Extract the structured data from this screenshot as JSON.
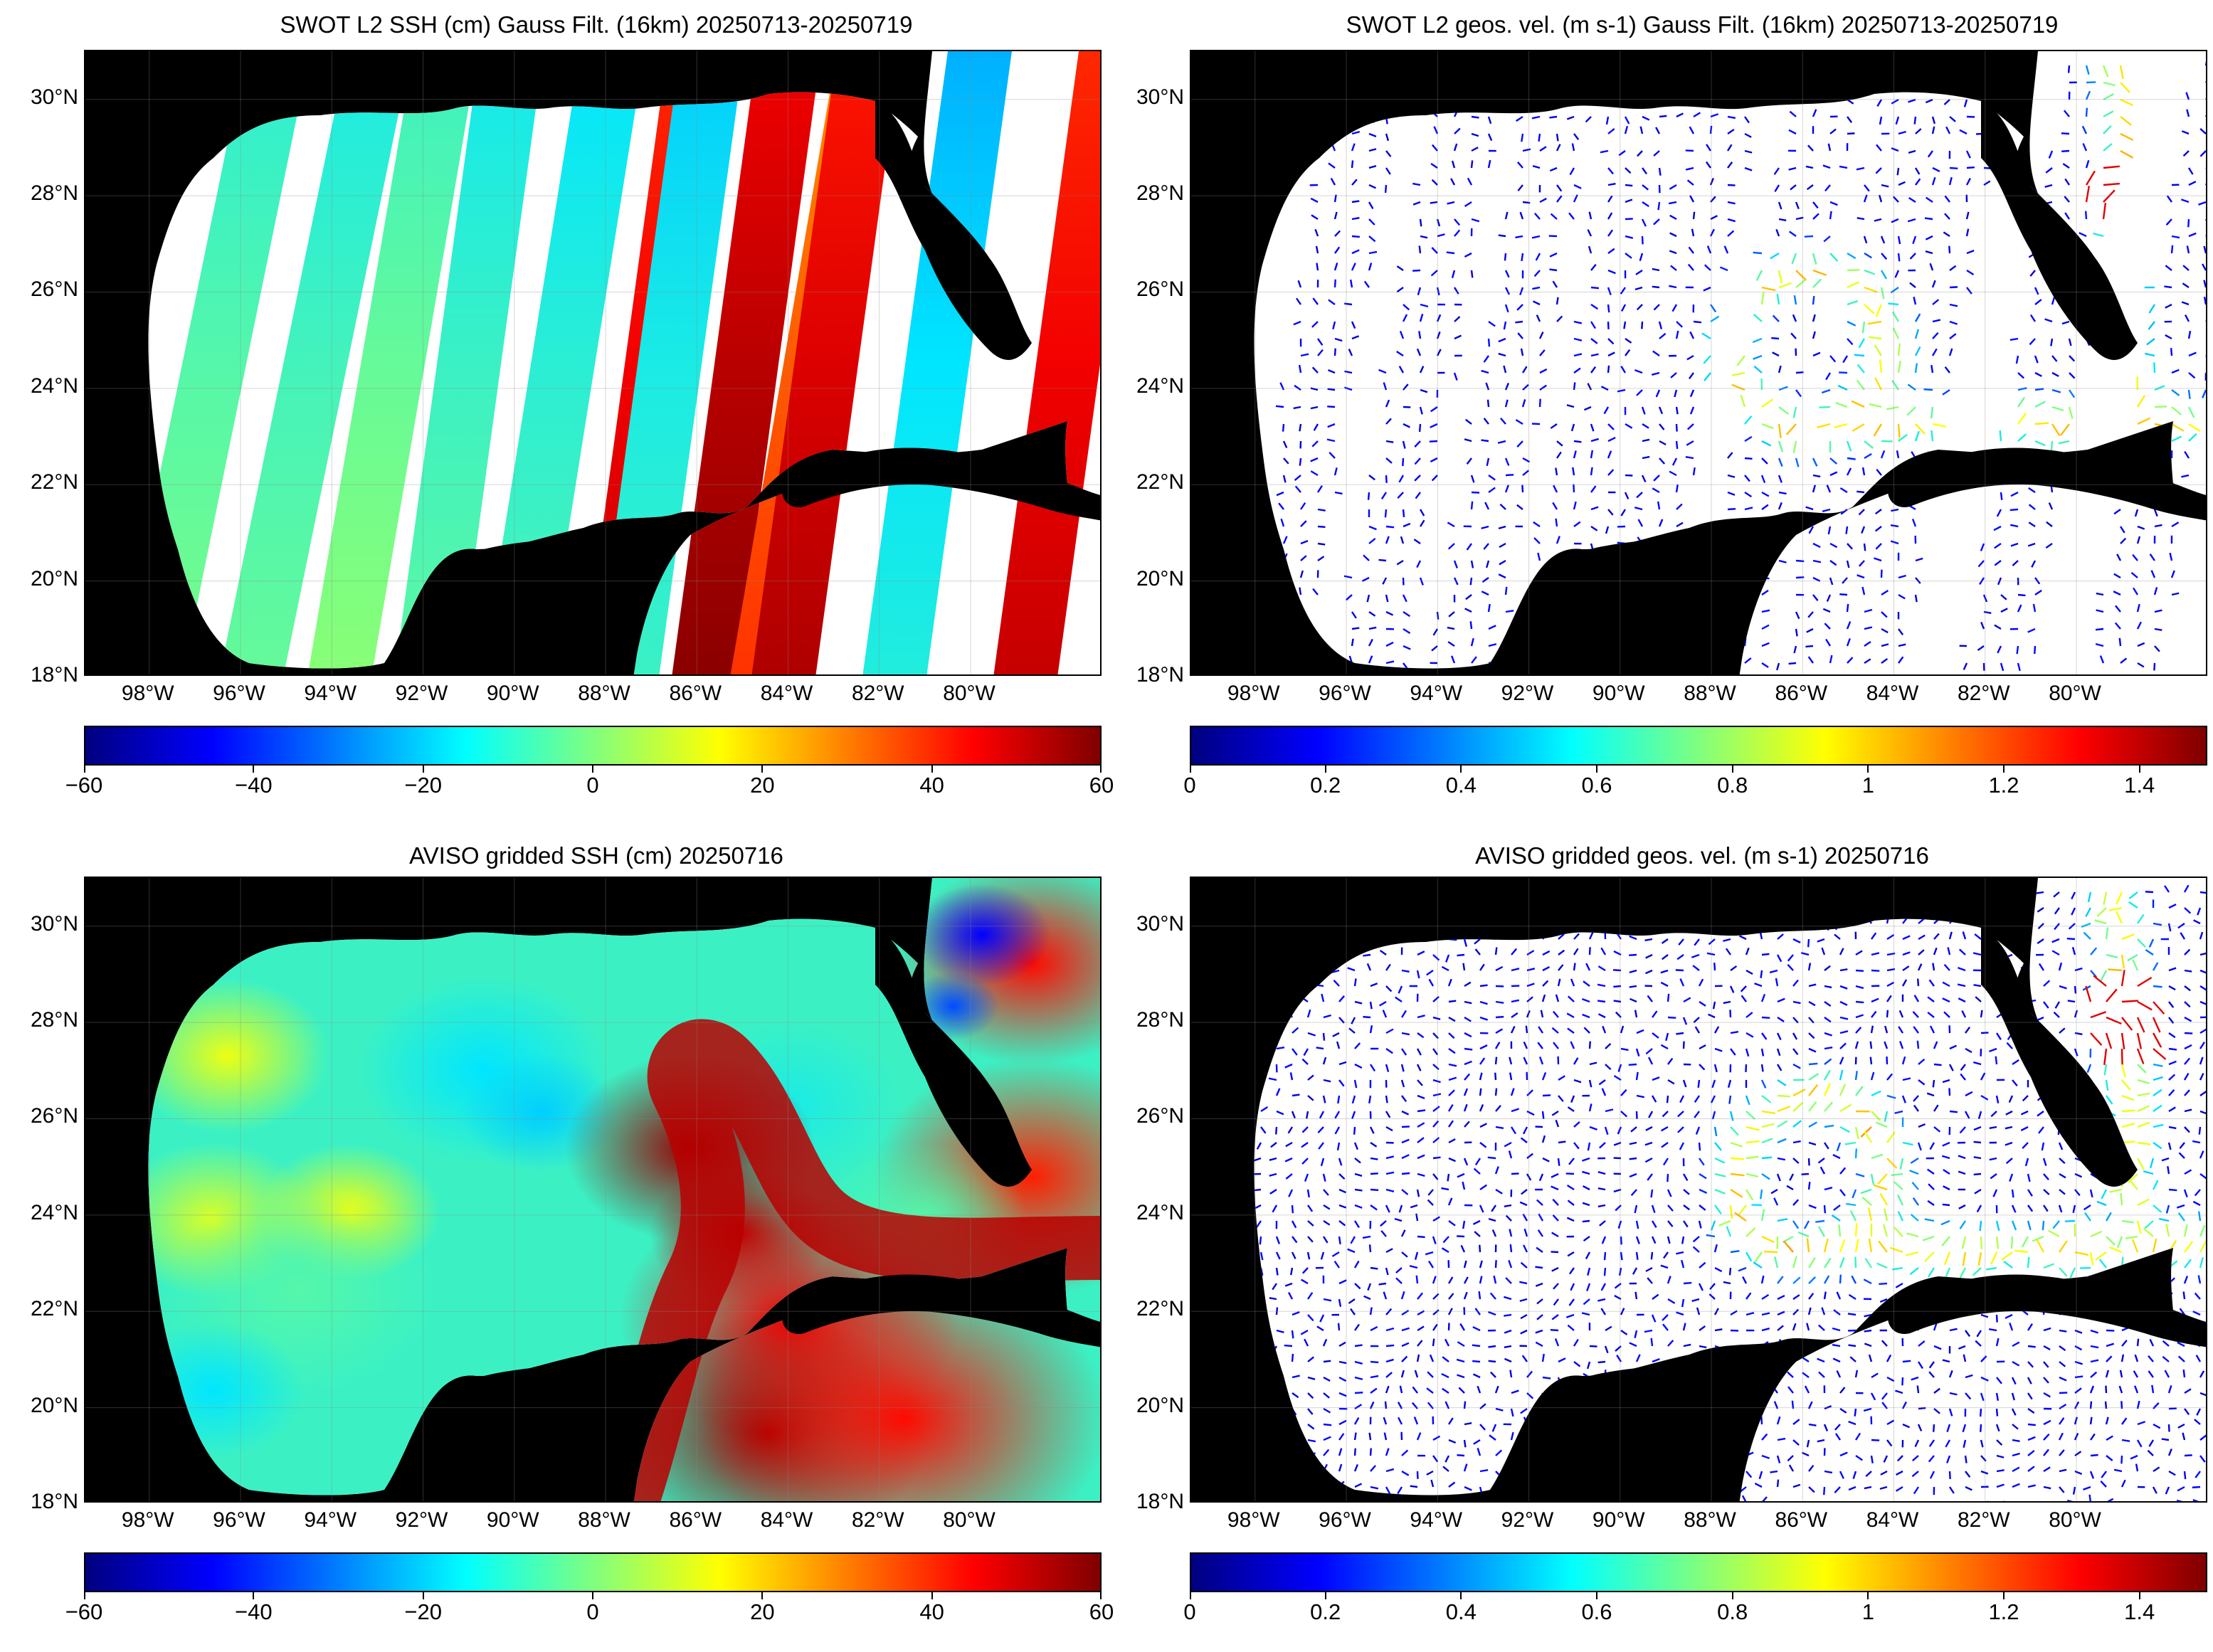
{
  "colors": {
    "land": "#000000",
    "ocean_nodata": "#ffffff",
    "jet": [
      "#00007f",
      "#0000ff",
      "#007fff",
      "#00ffff",
      "#7fff7f",
      "#ffff00",
      "#ff7f00",
      "#ff0000",
      "#7f0000"
    ]
  },
  "chart_data": [
    {
      "id": "swot-ssh",
      "type": "heatmap",
      "title": "SWOT L2 SSH (cm) Gauss Filt. (16km) 20250713-20250719",
      "xlim": [
        -99.4,
        -77.1
      ],
      "ylim": [
        18,
        31
      ],
      "yticks": [
        18,
        20,
        22,
        24,
        26,
        28,
        30
      ],
      "ytick_labels": [
        "18°N",
        "20°N",
        "22°N",
        "24°N",
        "26°N",
        "28°N",
        "30°N"
      ],
      "xticks": [
        -98,
        -96,
        -94,
        -92,
        -90,
        -88,
        -86,
        -84,
        -82,
        -80
      ],
      "xtick_labels": [
        "98°W",
        "96°W",
        "94°W",
        "92°W",
        "90°W",
        "88°W",
        "86°W",
        "84°W",
        "82°W",
        "80°W"
      ],
      "colorbar": {
        "min": -60,
        "max": 60,
        "ticks": [
          -60,
          -40,
          -20,
          0,
          20,
          40,
          60
        ],
        "tick_labels": [
          "−60",
          "−40",
          "−20",
          "0",
          "20",
          "40",
          "60"
        ]
      },
      "style": "swaths-scalar"
    },
    {
      "id": "swot-vel",
      "type": "heatmap",
      "title": "SWOT L2 geos. vel. (m s-1) Gauss Filt. (16km) 20250713-20250719",
      "xlim": [
        -99.4,
        -77.1
      ],
      "ylim": [
        18,
        31
      ],
      "yticks": [
        18,
        20,
        22,
        24,
        26,
        28,
        30
      ],
      "ytick_labels": [
        "18°N",
        "20°N",
        "22°N",
        "24°N",
        "26°N",
        "28°N",
        "30°N"
      ],
      "xticks": [
        -98,
        -96,
        -94,
        -92,
        -90,
        -88,
        -86,
        -84,
        -82,
        -80
      ],
      "xtick_labels": [
        "98°W",
        "96°W",
        "94°W",
        "92°W",
        "90°W",
        "88°W",
        "86°W",
        "84°W",
        "82°W",
        "80°W"
      ],
      "colorbar": {
        "min": 0,
        "max": 1.5,
        "ticks": [
          0,
          0.2,
          0.4,
          0.6,
          0.8,
          1,
          1.2,
          1.4
        ],
        "tick_labels": [
          "0",
          "0.2",
          "0.4",
          "0.6",
          "0.8",
          "1",
          "1.2",
          "1.4"
        ]
      },
      "style": "swaths-vector"
    },
    {
      "id": "aviso-ssh",
      "type": "heatmap",
      "title": "AVISO gridded SSH (cm) 20250716",
      "xlim": [
        -99.4,
        -77.1
      ],
      "ylim": [
        18,
        31
      ],
      "yticks": [
        18,
        20,
        22,
        24,
        26,
        28,
        30
      ],
      "ytick_labels": [
        "18°N",
        "20°N",
        "22°N",
        "24°N",
        "26°N",
        "28°N",
        "30°N"
      ],
      "xticks": [
        -98,
        -96,
        -94,
        -92,
        -90,
        -88,
        -86,
        -84,
        -82,
        -80
      ],
      "xtick_labels": [
        "98°W",
        "96°W",
        "94°W",
        "92°W",
        "90°W",
        "88°W",
        "86°W",
        "84°W",
        "82°W",
        "80°W"
      ],
      "colorbar": {
        "min": -60,
        "max": 60,
        "ticks": [
          -60,
          -40,
          -20,
          0,
          20,
          40,
          60
        ],
        "tick_labels": [
          "−60",
          "−40",
          "−20",
          "0",
          "20",
          "40",
          "60"
        ]
      },
      "style": "gridded-scalar"
    },
    {
      "id": "aviso-vel",
      "type": "heatmap",
      "title": "AVISO gridded geos. vel. (m s-1)  20250716",
      "xlim": [
        -99.4,
        -77.1
      ],
      "ylim": [
        18,
        31
      ],
      "yticks": [
        18,
        20,
        22,
        24,
        26,
        28,
        30
      ],
      "ytick_labels": [
        "18°N",
        "20°N",
        "22°N",
        "24°N",
        "26°N",
        "28°N",
        "30°N"
      ],
      "xticks": [
        -98,
        -96,
        -94,
        -92,
        -90,
        -88,
        -86,
        -84,
        -82,
        -80
      ],
      "xtick_labels": [
        "98°W",
        "96°W",
        "94°W",
        "92°W",
        "90°W",
        "88°W",
        "86°W",
        "84°W",
        "82°W",
        "80°W"
      ],
      "colorbar": {
        "min": 0,
        "max": 1.5,
        "ticks": [
          0,
          0.2,
          0.4,
          0.6,
          0.8,
          1,
          1.2,
          1.4
        ],
        "tick_labels": [
          "0",
          "0.2",
          "0.4",
          "0.6",
          "0.8",
          "1",
          "1.2",
          "1.4"
        ]
      },
      "style": "gridded-vector"
    }
  ]
}
